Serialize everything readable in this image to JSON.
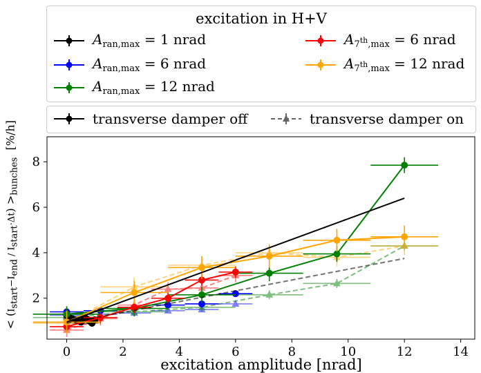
{
  "chart_data": {
    "type": "line",
    "title": "excitation in H+V",
    "xlabel": "excitation amplitude [nrad]",
    "ylabel": "< (I_start - I_end)/(I_start·Δt) >_bunches  [%/h]",
    "xlim": [
      -0.7,
      14.5
    ],
    "ylim": [
      0.2,
      9.1
    ],
    "xticks": [
      0,
      2,
      4,
      6,
      8,
      10,
      12,
      14
    ],
    "yticks": [
      2,
      4,
      6,
      8
    ],
    "grid": false,
    "colors": {
      "black": "#000000",
      "blue": "#0000ff",
      "green": "#008000",
      "red": "#ff0000",
      "orange": "#ffa500"
    },
    "legend_title": "excitation in H+V",
    "legend": [
      {
        "name": "A_ran,max = 1 nrad",
        "color": "black"
      },
      {
        "name": "A_ran,max = 6 nrad",
        "color": "blue"
      },
      {
        "name": "A_ran,max = 12 nrad",
        "color": "green"
      },
      {
        "name": "A_7th,max = 6 nrad",
        "color": "red"
      },
      {
        "name": "A_7th,max = 12 nrad",
        "color": "orange"
      }
    ],
    "legend2": [
      {
        "name": "transverse damper off",
        "style": "solid",
        "marker": "circle"
      },
      {
        "name": "transverse damper on",
        "style": "dashed",
        "marker": "triangle"
      }
    ],
    "series": [
      {
        "name": "A_ran,max = 1 nrad",
        "damper": "off",
        "color": "black",
        "fit": true,
        "x": [
          0,
          0.1,
          0.2,
          0.3,
          0.4,
          0.5,
          0.6,
          0.7,
          0.8,
          0.9,
          1.0
        ],
        "y": [
          1.25,
          1.15,
          1.1,
          1.05,
          1.0,
          0.95,
          1.05,
          1.1,
          1.0,
          0.9,
          1.05
        ],
        "xerr": 0.1,
        "yerr": 0.1
      },
      {
        "name": "A_ran,max = 1 nrad",
        "damper": "on",
        "color": "black",
        "fit": true,
        "x": [
          0,
          0.1,
          0.2,
          0.3,
          0.4,
          0.5,
          0.6,
          0.7,
          0.8,
          0.9,
          1.0
        ],
        "y": [
          1.2,
          1.1,
          1.05,
          1.0,
          1.05,
          1.0,
          0.95,
          1.0,
          1.05,
          0.95,
          1.0
        ],
        "xerr": 0.1,
        "yerr": 0.1
      },
      {
        "name": "A_ran,max = 6 nrad",
        "damper": "off",
        "color": "blue",
        "fit": false,
        "x": [
          0,
          1.2,
          2.4,
          3.6,
          4.8,
          6.0
        ],
        "y": [
          1.4,
          1.45,
          1.55,
          1.7,
          1.75,
          2.2
        ],
        "xerr": 0.6,
        "yerr": 0.1
      },
      {
        "name": "A_ran,max = 6 nrad",
        "damper": "on",
        "color": "blue",
        "fit": false,
        "x": [
          0,
          1.2,
          2.4,
          3.6,
          4.8,
          6.0
        ],
        "y": [
          1.25,
          1.3,
          1.35,
          1.45,
          1.5,
          1.75
        ],
        "xerr": 0.6,
        "yerr": 0.1
      },
      {
        "name": "A_ran,max = 12 nrad",
        "damper": "off",
        "color": "green",
        "fit": true,
        "x": [
          0,
          2.4,
          4.8,
          7.2,
          9.6,
          12.0
        ],
        "y": [
          1.3,
          1.55,
          2.15,
          3.1,
          3.95,
          7.85
        ],
        "xerr": 1.2,
        "yerr": 0.35
      },
      {
        "name": "A_ran,max = 12 nrad",
        "damper": "on",
        "color": "green",
        "fit": true,
        "x": [
          0,
          2.4,
          4.8,
          7.2,
          9.6,
          12.0
        ],
        "y": [
          1.15,
          1.4,
          1.6,
          2.15,
          2.65,
          4.3
        ],
        "xerr": 1.2,
        "yerr": 0.2
      },
      {
        "name": "A_7th,max = 6 nrad",
        "damper": "off",
        "color": "red",
        "fit": true,
        "x": [
          0,
          1.2,
          2.4,
          3.6,
          4.8,
          6.0
        ],
        "y": [
          0.75,
          1.15,
          1.6,
          2.0,
          2.8,
          3.15
        ],
        "xerr": 0.6,
        "yerr": 0.25
      },
      {
        "name": "A_7th,max = 6 nrad",
        "damper": "on",
        "color": "red",
        "fit": true,
        "x": [
          0,
          1.2,
          2.4,
          3.6,
          4.8,
          6.0
        ],
        "y": [
          0.6,
          1.1,
          1.7,
          2.4,
          2.45,
          3.0
        ],
        "xerr": 0.6,
        "yerr": 0.3
      },
      {
        "name": "A_7th,max = 12 nrad",
        "damper": "off",
        "color": "orange",
        "fit": true,
        "x": [
          0,
          2.4,
          4.8,
          7.2,
          9.6,
          12.0
        ],
        "y": [
          0.95,
          2.25,
          3.35,
          3.85,
          4.55,
          4.7
        ],
        "xerr": 1.2,
        "yerr": 0.5
      },
      {
        "name": "A_7th,max = 12 nrad",
        "damper": "on",
        "color": "orange",
        "fit": true,
        "x": [
          0,
          2.4,
          4.8,
          7.2,
          9.6,
          12.0
        ],
        "y": [
          0.9,
          2.5,
          3.45,
          4.0,
          3.8,
          4.3
        ],
        "xerr": 1.2,
        "yerr": 0.4
      }
    ],
    "fit_lines": [
      {
        "color": "black",
        "damper": "off",
        "x": [
          0,
          12
        ],
        "y": [
          0.95,
          6.4
        ]
      },
      {
        "color": "black",
        "damper": "on",
        "x": [
          0,
          12
        ],
        "y": [
          0.9,
          3.75
        ]
      }
    ]
  }
}
